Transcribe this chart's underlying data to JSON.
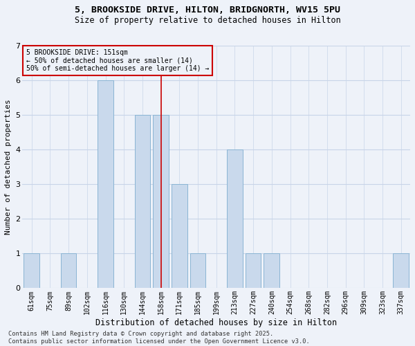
{
  "title1": "5, BROOKSIDE DRIVE, HILTON, BRIDGNORTH, WV15 5PU",
  "title2": "Size of property relative to detached houses in Hilton",
  "xlabel": "Distribution of detached houses by size in Hilton",
  "ylabel": "Number of detached properties",
  "categories": [
    "61sqm",
    "75sqm",
    "89sqm",
    "102sqm",
    "116sqm",
    "130sqm",
    "144sqm",
    "158sqm",
    "171sqm",
    "185sqm",
    "199sqm",
    "213sqm",
    "227sqm",
    "240sqm",
    "254sqm",
    "268sqm",
    "282sqm",
    "296sqm",
    "309sqm",
    "323sqm",
    "337sqm"
  ],
  "values": [
    1,
    0,
    1,
    0,
    6,
    0,
    5,
    5,
    3,
    1,
    0,
    4,
    1,
    1,
    0,
    0,
    0,
    0,
    0,
    0,
    1
  ],
  "bar_color": "#c9d9ec",
  "bar_edgecolor": "#8ab4d4",
  "vline_index": 7,
  "vline_color": "#cc0000",
  "annotation_text1": "5 BROOKSIDE DRIVE: 151sqm",
  "annotation_text2": "← 50% of detached houses are smaller (14)",
  "annotation_text3": "50% of semi-detached houses are larger (14) →",
  "ylim": [
    0,
    7
  ],
  "yticks": [
    0,
    1,
    2,
    3,
    4,
    5,
    6,
    7
  ],
  "footer": "Contains HM Land Registry data © Crown copyright and database right 2025.\nContains public sector information licensed under the Open Government Licence v3.0.",
  "background_color": "#eef2f9",
  "grid_color": "#c8d4e8"
}
